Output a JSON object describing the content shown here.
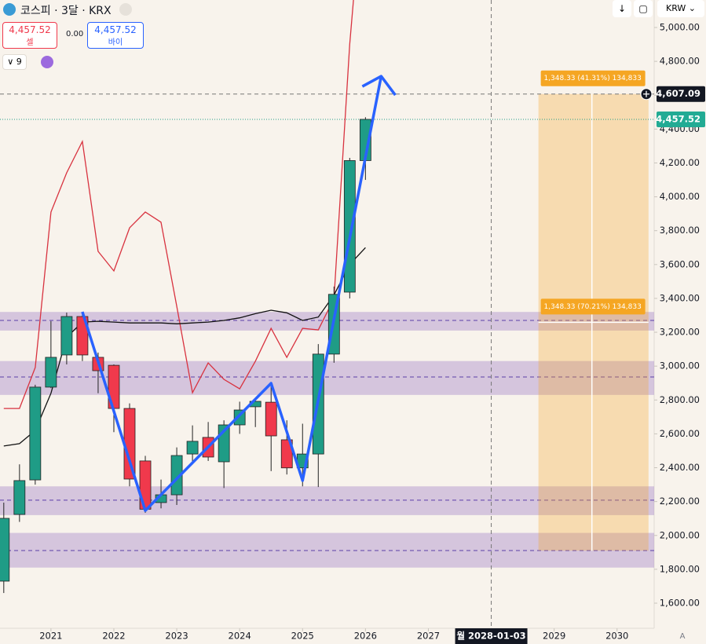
{
  "header": {
    "symbol": "코스피 · 3달 · KRX",
    "sell_price": "4,457.52",
    "sell_label": "셀",
    "spread": "0.00",
    "buy_price": "4,457.52",
    "buy_label": "바이",
    "indicator_count": "9",
    "currency": "KRW"
  },
  "chart_data": {
    "type": "candlestick",
    "x": [
      2020.25,
      2020.5,
      2020.75,
      2021.0,
      2021.25,
      2021.5,
      2021.75,
      2022.0,
      2022.25,
      2022.5,
      2022.75,
      2023.0,
      2023.25,
      2023.5,
      2023.75,
      2024.0,
      2024.25,
      2024.5,
      2024.75,
      2025.0,
      2025.25,
      2025.5,
      2025.75,
      2026.0
    ],
    "open": [
      1730,
      2124,
      2328,
      2876,
      3066,
      3293,
      3052,
      3005,
      2750,
      2440,
      2194,
      2240,
      2481,
      2579,
      2435,
      2653,
      2760,
      2787,
      2565,
      2399,
      2481,
      3071,
      3437,
      4214
    ],
    "high": [
      2194,
      2420,
      2890,
      3266,
      3316,
      3316,
      3080,
      3010,
      2780,
      2470,
      2330,
      2520,
      2650,
      2670,
      2680,
      2790,
      2810,
      2900,
      2680,
      2660,
      3130,
      3470,
      4230,
      4470
    ],
    "low": [
      1660,
      2080,
      2300,
      2870,
      3010,
      3030,
      2840,
      2610,
      2290,
      2134,
      2160,
      2180,
      2420,
      2440,
      2280,
      2600,
      2640,
      2380,
      2360,
      2290,
      2286,
      3020,
      3400,
      4100
    ],
    "close": [
      2101,
      2324,
      2876,
      3052,
      3293,
      3066,
      2973,
      2750,
      2333,
      2155,
      2240,
      2472,
      2556,
      2463,
      2653,
      2741,
      2792,
      2588,
      2399,
      2481,
      3071,
      3424,
      4214,
      4457.52
    ],
    "up_color": "#1f9c86",
    "down_color": "#f0394c",
    "xlim": [
      2020.19,
      2030.59
    ],
    "xticks": [
      2021,
      2022,
      2023,
      2024,
      2025,
      2026,
      2027,
      2029,
      2030
    ],
    "ylim": [
      1451.6,
      5162.4
    ],
    "yticks": [
      {
        "value": 1600,
        "label": "1,600.00"
      },
      {
        "value": 1800,
        "label": "1,800.00"
      },
      {
        "value": 2000,
        "label": "2,000.00"
      },
      {
        "value": 2200,
        "label": "2,200.00"
      },
      {
        "value": 2400,
        "label": "2,400.00"
      },
      {
        "value": 2600,
        "label": "2,600.00"
      },
      {
        "value": 2800,
        "label": "2,800.00"
      },
      {
        "value": 3000,
        "label": "3,000.00"
      },
      {
        "value": 3200,
        "label": "3,200.00"
      },
      {
        "value": 3400,
        "label": "3,400.00"
      },
      {
        "value": 3600,
        "label": "3,600.00"
      },
      {
        "value": 3800,
        "label": "3,800.00"
      },
      {
        "value": 4000,
        "label": "4,000.00"
      },
      {
        "value": 4200,
        "label": "4,200.00"
      },
      {
        "value": 4400,
        "label": "4,400.00"
      },
      {
        "value": 4600,
        "label": "4,600.00"
      },
      {
        "value": 4800,
        "label": "4,800.00"
      },
      {
        "value": 5000,
        "label": "5,000.00"
      }
    ],
    "overlays": [
      {
        "color": "#d8323f",
        "values": [
          2750,
          2750,
          2992,
          3910,
          4142,
          4327,
          3678,
          3562,
          3817,
          3910,
          3850,
          3353,
          2843,
          3019,
          2922,
          2866,
          3029,
          3223,
          3052,
          3223,
          3214,
          3400,
          4900,
          6000
        ]
      },
      {
        "color": "#111111",
        "values": [
          2528,
          2542,
          2620,
          2840,
          3170,
          3260,
          3265,
          3260,
          3255,
          3255,
          3255,
          3250,
          3255,
          3260,
          3270,
          3285,
          3310,
          3330,
          3315,
          3270,
          3290,
          3420,
          3600,
          3700
        ]
      }
    ],
    "zones": [
      {
        "from": 3210,
        "to": 3320,
        "level": 3270
      },
      {
        "from": 2830,
        "to": 3030,
        "level": 2936
      },
      {
        "from": 2120,
        "to": 2290,
        "level": 2208
      },
      {
        "from": 1810,
        "to": 2015,
        "level": 1911
      }
    ],
    "zone_color": "#9c7cc4",
    "pattern": {
      "color": "#2962ff",
      "x": [
        2021.5,
        2022.5,
        2024.5,
        2025.0,
        2026.25
      ],
      "values": [
        3321,
        2147,
        2899,
        2324,
        4712
      ]
    },
    "projection": {
      "x_start": 2028.75,
      "x_end": 2030.5,
      "x_mid": 2029.6,
      "top": 4607.09,
      "mid": 3258.76,
      "bottom": 1910.43,
      "upper_label": "1,348.33 (41.31%) 134,833",
      "lower_label": "1,348.33 (70.21%) 134,833",
      "color": "#f5a623"
    },
    "last_price": {
      "value": 4457.52,
      "label": "4,457.52"
    },
    "crosshair": {
      "value": 4607.09,
      "label": "4,607.09",
      "x": 2028.0,
      "x_label": "월 2028-01-03"
    },
    "scale_mode": "A"
  }
}
